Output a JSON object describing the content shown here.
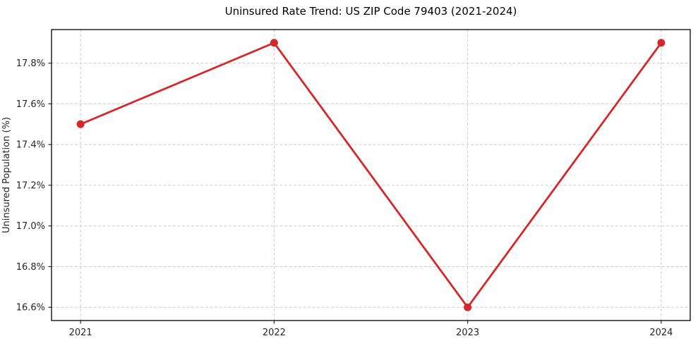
{
  "figure": {
    "title": "Uninsured Rate Trend: US ZIP Code 79403 (2021-2024)"
  },
  "chart_data": {
    "type": "line",
    "title": "Uninsured Rate Trend: US ZIP Code 79403 (2021-2024)",
    "xlabel": "",
    "ylabel": "Uninsured Population (%)",
    "x": [
      2021,
      2022,
      2023,
      2024
    ],
    "xtick_labels": [
      "2021",
      "2022",
      "2023",
      "2024"
    ],
    "series": [
      {
        "name": "Uninsured rate",
        "values": [
          17.5,
          17.9,
          16.6,
          17.9
        ],
        "color": "#d62728",
        "marker": "circle"
      }
    ],
    "ytick_values": [
      16.6,
      16.8,
      17.0,
      17.2,
      17.4,
      17.6,
      17.8
    ],
    "ytick_labels": [
      "16.6%",
      "16.8%",
      "17.0%",
      "17.2%",
      "17.4%",
      "17.6%",
      "17.8%"
    ],
    "xlim": [
      2020.85,
      2024.15
    ],
    "ylim": [
      16.535,
      17.965
    ],
    "grid": true,
    "grid_style": "dashed",
    "grid_color": "#cccccc",
    "legend_position": "none",
    "background_color": "#ffffff"
  }
}
